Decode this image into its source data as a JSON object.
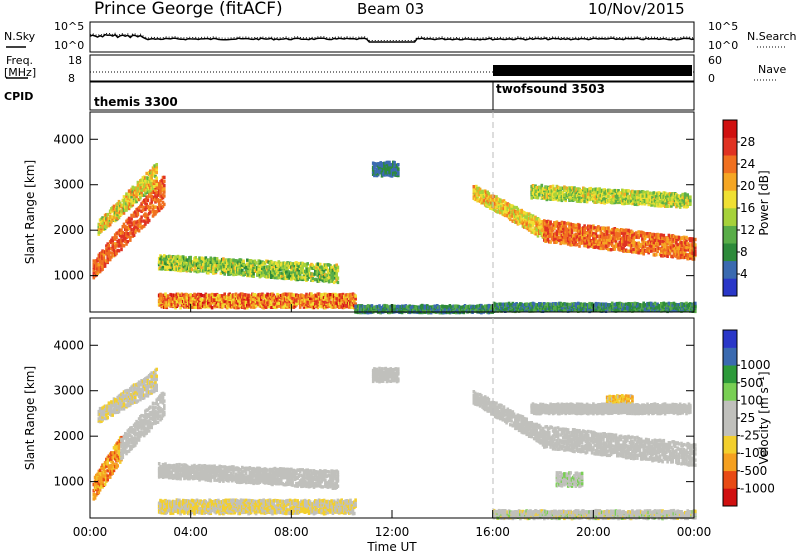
{
  "header": {
    "station": "Prince George (fitACF)",
    "beam": "Beam 03",
    "date": "10/Nov/2015"
  },
  "noise_panel": {
    "left_label": "N.Sky",
    "right_label": "N.Search",
    "left_ticks": [
      "10^5",
      "10^0"
    ],
    "right_ticks": [
      "10^5",
      "10^0"
    ]
  },
  "freq_panel": {
    "left_label_1": "Freq.",
    "left_label_2": "[MHz]",
    "right_label": "Nave",
    "left_ticks": [
      "18",
      "8"
    ],
    "right_ticks": [
      "60",
      "0"
    ]
  },
  "cpid_panel": {
    "label": "CPID",
    "segments": [
      {
        "name": "themis 3300",
        "start_hour": 0
      },
      {
        "name": "twofsound 3503",
        "start_hour": 16
      }
    ]
  },
  "colors": {
    "power": [
      "#2a37c8",
      "#3a6ab0",
      "#2d8a3a",
      "#59ad48",
      "#a6d23a",
      "#f0e033",
      "#f5a623",
      "#f07020",
      "#e03222",
      "#d01010"
    ],
    "velocity": [
      "#d01010",
      "#e84a14",
      "#f5a020",
      "#f3cf2d",
      "#c0c0bc",
      "#c0c0bc",
      "#79cf54",
      "#2d9a3a",
      "#3a6ab0",
      "#2a37c8"
    ]
  },
  "chart_data": [
    {
      "type": "heatmap",
      "quantity": "power",
      "xlabel": "",
      "ylabel": "Slant Range [km]",
      "xlim": [
        0,
        24
      ],
      "ylim": [
        200,
        4600
      ],
      "yticks": [
        "1000",
        "2000",
        "3000",
        "4000"
      ],
      "colorbar_label": "Power [dB]",
      "colorbar_ticks": [
        "4",
        "8",
        "12",
        "16",
        "20",
        "24",
        "28"
      ],
      "colorbar_range": [
        0,
        32
      ],
      "regions": [
        {
          "t": [
            0.1,
            2.9
          ],
          "r0": [
            1200,
            2950
          ],
          "dr": [
            200,
            350
          ],
          "v": [
            22,
            28
          ]
        },
        {
          "t": [
            0.3,
            2.6
          ],
          "r0": [
            2100,
            3300
          ],
          "dr": [
            150,
            250
          ],
          "v": [
            12,
            24
          ]
        },
        {
          "t": [
            2.7,
            9.8
          ],
          "r0": [
            1350,
            1100
          ],
          "dr": [
            150,
            200
          ],
          "v": [
            8,
            20
          ]
        },
        {
          "t": [
            2.7,
            10.5
          ],
          "r0": [
            500,
            500
          ],
          "dr": [
            150,
            150
          ],
          "v": [
            16,
            30
          ]
        },
        {
          "t": [
            10.5,
            16
          ],
          "r0": [
            300,
            300
          ],
          "dr": [
            80,
            80
          ],
          "v": [
            4,
            12
          ]
        },
        {
          "t": [
            15.2,
            18.0
          ],
          "r0": [
            2900,
            2050
          ],
          "dr": [
            150,
            200
          ],
          "v": [
            14,
            24
          ]
        },
        {
          "t": [
            18.0,
            24
          ],
          "r0": [
            2050,
            1650
          ],
          "dr": [
            250,
            250
          ],
          "v": [
            20,
            28
          ]
        },
        {
          "t": [
            17.5,
            23.8
          ],
          "r0": [
            2900,
            2700
          ],
          "dr": [
            150,
            150
          ],
          "v": [
            10,
            20
          ]
        },
        {
          "t": [
            11.2,
            12.2
          ],
          "r0": [
            3400,
            3400
          ],
          "dr": [
            150,
            150
          ],
          "v": [
            4,
            8
          ]
        },
        {
          "t": [
            16,
            24
          ],
          "r0": [
            350,
            350
          ],
          "dr": [
            80,
            80
          ],
          "v": [
            4,
            12
          ]
        }
      ]
    },
    {
      "type": "heatmap",
      "quantity": "velocity",
      "xlabel": "Time UT",
      "ylabel": "Slant Range [km]",
      "xlim": [
        0,
        24
      ],
      "ylim": [
        200,
        4600
      ],
      "xticks": [
        "00:00",
        "04:00",
        "08:00",
        "12:00",
        "16:00",
        "20:00",
        "00:00"
      ],
      "yticks": [
        "1000",
        "2000",
        "3000",
        "4000"
      ],
      "colorbar_label": "Velocity [m s⁻¹]",
      "colorbar_ticks": [
        "-1000",
        "-500",
        "-100",
        "-25",
        "25",
        "100",
        "500",
        "1000"
      ],
      "colorbar_range": [
        -1200,
        1200
      ],
      "regions": [
        {
          "t": [
            0.1,
            1.2
          ],
          "r0": [
            900,
            1800
          ],
          "dr": [
            250,
            300
          ],
          "v": [
            -900,
            -300
          ]
        },
        {
          "t": [
            1.2,
            2.9
          ],
          "r0": [
            1800,
            2800
          ],
          "dr": [
            250,
            300
          ],
          "v": [
            -20,
            20
          ]
        },
        {
          "t": [
            0.3,
            2.6
          ],
          "r0": [
            2500,
            3300
          ],
          "dr": [
            150,
            250
          ],
          "v": [
            -300,
            -60
          ]
        },
        {
          "t": [
            2.7,
            9.8
          ],
          "r0": [
            1300,
            1100
          ],
          "dr": [
            150,
            200
          ],
          "v": [
            -20,
            20
          ]
        },
        {
          "t": [
            2.7,
            10.5
          ],
          "r0": [
            500,
            500
          ],
          "dr": [
            150,
            150
          ],
          "v": [
            -400,
            -80
          ]
        },
        {
          "t": [
            15.2,
            18.0
          ],
          "r0": [
            2900,
            2050
          ],
          "dr": [
            150,
            200
          ],
          "v": [
            -20,
            20
          ]
        },
        {
          "t": [
            18.0,
            24
          ],
          "r0": [
            2050,
            1650
          ],
          "dr": [
            250,
            250
          ],
          "v": [
            -20,
            20
          ]
        },
        {
          "t": [
            20.5,
            21.5
          ],
          "r0": [
            2800,
            2800
          ],
          "dr": [
            150,
            150
          ],
          "v": [
            -600,
            -200
          ]
        },
        {
          "t": [
            17.5,
            23.8
          ],
          "r0": [
            2650,
            2650
          ],
          "dr": [
            100,
            100
          ],
          "v": [
            -20,
            20
          ]
        },
        {
          "t": [
            18.5,
            19.5
          ],
          "r0": [
            1100,
            1100
          ],
          "dr": [
            150,
            150
          ],
          "v": [
            100,
            300
          ]
        },
        {
          "t": [
            11.2,
            12.2
          ],
          "r0": [
            3400,
            3400
          ],
          "dr": [
            150,
            150
          ],
          "v": [
            -20,
            20
          ]
        },
        {
          "t": [
            16,
            24
          ],
          "r0": [
            320,
            320
          ],
          "dr": [
            80,
            80
          ],
          "v": [
            -300,
            300
          ]
        }
      ]
    }
  ]
}
